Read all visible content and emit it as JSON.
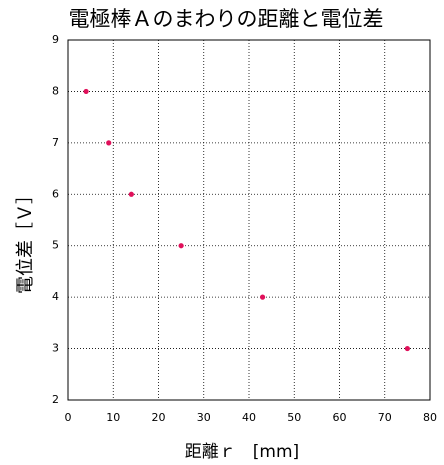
{
  "chart_data": {
    "type": "scatter",
    "title": "電極棒Ａのまわりの距離と電位差",
    "x_label": "距離ｒ　[mm]",
    "y_label": "電位差［Ｖ］",
    "series": [
      {
        "color": "#e0105a",
        "x": [
          4,
          9,
          14,
          25,
          43,
          75
        ],
        "values": [
          8,
          7,
          6,
          5,
          4,
          3
        ]
      }
    ],
    "xlim": [
      0,
      80
    ],
    "xticks": [
      0,
      10,
      20,
      30,
      40,
      50,
      60,
      70,
      80
    ],
    "ylim": [
      2,
      9
    ],
    "yticks": [
      2,
      3,
      4,
      5,
      6,
      7,
      8,
      9
    ],
    "grid": true
  }
}
